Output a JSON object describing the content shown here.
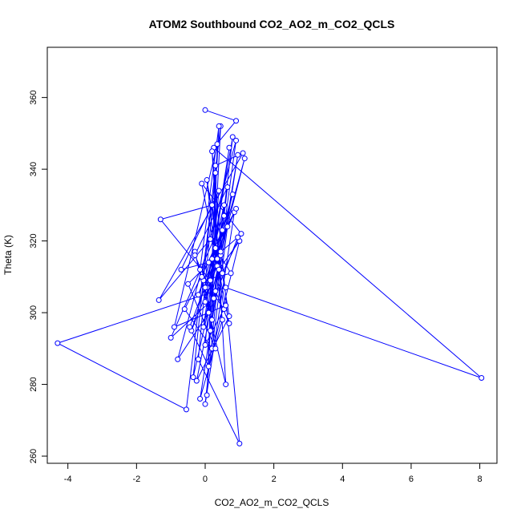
{
  "chart_data": {
    "type": "line",
    "title": "ATOM2 Southbound CO2_AO2_m_CO2_QCLS",
    "xlabel": "CO2_AO2_m_CO2_QCLS",
    "ylabel": "Theta (K)",
    "xlim": [
      -4.6,
      8.5
    ],
    "ylim": [
      258,
      374
    ],
    "x_ticks": [
      -4,
      -2,
      0,
      2,
      4,
      6,
      8
    ],
    "y_ticks": [
      260,
      280,
      300,
      320,
      340,
      360
    ],
    "grid": false,
    "legend": "none",
    "series": [
      {
        "color": "#0000ff",
        "marker": "open-circle",
        "x": [
          0.0,
          0.9,
          0.25,
          8.05,
          0.6,
          -4.3,
          -0.55,
          0.45,
          0.05,
          0.3,
          -0.2,
          1.0,
          0.2,
          0.6,
          -0.3,
          0.1,
          -0.8,
          0.9,
          0.3,
          0.7,
          -0.1,
          1.05,
          0.5,
          0.2,
          -1.3,
          0.15,
          0.8,
          -0.4,
          0.35,
          1.15,
          0.0,
          0.55,
          -1.0,
          0.25,
          0.95,
          -0.15,
          0.5,
          0.05,
          0.7,
          -0.25,
          0.4,
          1.0,
          0.1,
          -0.45,
          0.65,
          0.2,
          -0.6,
          0.85,
          0.0,
          0.45,
          -0.35,
          0.3,
          1.1,
          -1.35,
          0.15,
          0.75,
          -0.05,
          0.55,
          0.3,
          -0.2,
          0.9,
          0.1,
          -0.7,
          0.4,
          0.0,
          0.6,
          -0.9,
          0.35,
          0.2,
          -0.1,
          0.5,
          0.05,
          0.8,
          0.25,
          -0.3,
          0.65,
          0.15,
          0.45,
          -0.5,
          0.3,
          0.0,
          0.55,
          0.1,
          0.95,
          -0.15,
          0.4,
          0.2,
          0.7,
          -0.05,
          0.35
        ],
        "y": [
          356.5,
          353.5,
          346.0,
          281.8,
          307.0,
          291.5,
          273.0,
          352.0,
          277.0,
          339.0,
          287.0,
          263.5,
          345.0,
          280.0,
          317.0,
          300.0,
          287.0,
          348.0,
          306.0,
          297.0,
          336.0,
          322.0,
          311.0,
          330.0,
          326.0,
          309.0,
          333.0,
          295.0,
          313.0,
          343.0,
          303.0,
          327.0,
          293.0,
          304.0,
          344.0,
          276.0,
          298.0,
          337.0,
          299.0,
          281.0,
          312.0,
          320.0,
          285.0,
          296.0,
          324.0,
          290.0,
          301.0,
          328.0,
          274.5,
          316.0,
          282.0,
          341.0,
          344.5,
          303.5,
          320.5,
          311.0,
          309.0,
          301.0,
          318.0,
          305.0,
          329.0,
          314.0,
          312.0,
          334.0,
          291.0,
          302.0,
          296.0,
          347.0,
          298.0,
          310.0,
          323.0,
          307.0,
          349.0,
          304.0,
          316.0,
          335.0,
          295.0,
          317.0,
          308.0,
          290.0,
          307.0,
          330.0,
          300.0,
          321.0,
          312.0,
          352.0,
          315.0,
          346.0,
          296.0,
          315.0
        ]
      }
    ]
  }
}
